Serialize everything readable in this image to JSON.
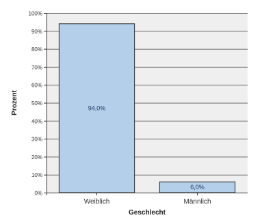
{
  "chart_data": {
    "type": "bar",
    "title": "",
    "xlabel": "Geschlecht",
    "ylabel": "Prozent",
    "categories": [
      "Weiblich",
      "Männlich"
    ],
    "values": [
      94.0,
      6.0
    ],
    "data_labels": [
      "94,0%",
      "6,0%"
    ],
    "ylim": [
      0,
      100
    ],
    "y_ticks": [
      0,
      10,
      20,
      30,
      40,
      50,
      60,
      70,
      80,
      90,
      100
    ],
    "y_tick_labels": [
      "0%",
      "10%",
      "20%",
      "30%",
      "40%",
      "50%",
      "60%",
      "70%",
      "80%",
      "90%",
      "100%"
    ],
    "grid": true,
    "legend": "none",
    "colors": {
      "bar_fill": "#b4cfe9",
      "bar_stroke": "#2b2b2b",
      "plot_background": "#efefef",
      "grid": "#6a6a6a",
      "axis": "#333333"
    }
  }
}
